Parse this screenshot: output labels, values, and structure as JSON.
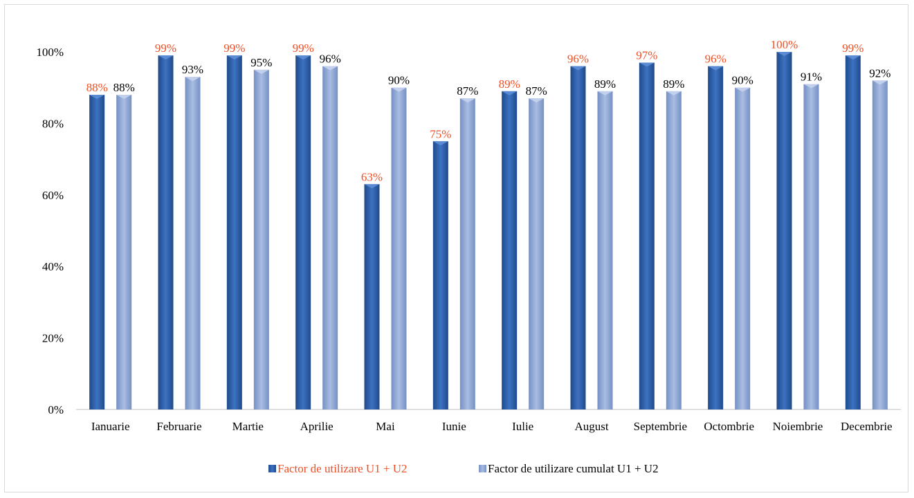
{
  "chart_data": {
    "type": "bar",
    "categories": [
      "Ianuarie",
      "Februarie",
      "Martie",
      "Aprilie",
      "Mai",
      "Iunie",
      "Iulie",
      "August",
      "Septembrie",
      "Octombrie",
      "Noiembrie",
      "Decembrie"
    ],
    "series": [
      {
        "name": "Factor de utilizare U1 + U2",
        "values": [
          88,
          99,
          99,
          99,
          63,
          75,
          89,
          96,
          97,
          96,
          100,
          99
        ],
        "labels": [
          "88%",
          "99%",
          "99%",
          "99%",
          "63%",
          "75%",
          "89%",
          "96%",
          "97%",
          "96%",
          "100%",
          "99%"
        ],
        "color": "#2e5fa8",
        "label_color": "#f04e23"
      },
      {
        "name": "Factor de utilizare cumulat U1 + U2",
        "values": [
          88,
          93,
          95,
          96,
          90,
          87,
          87,
          89,
          89,
          90,
          91,
          92
        ],
        "labels": [
          "88%",
          "93%",
          "95%",
          "96%",
          "90%",
          "87%",
          "87%",
          "89%",
          "89%",
          "90%",
          "91%",
          "92%"
        ],
        "color": "#8ea6d4",
        "label_color": "#000000"
      }
    ],
    "yticks": [
      "0%",
      "20%",
      "40%",
      "60%",
      "80%",
      "100%"
    ],
    "ylim": [
      0,
      100
    ],
    "legend_position": "bottom",
    "grid": false
  }
}
